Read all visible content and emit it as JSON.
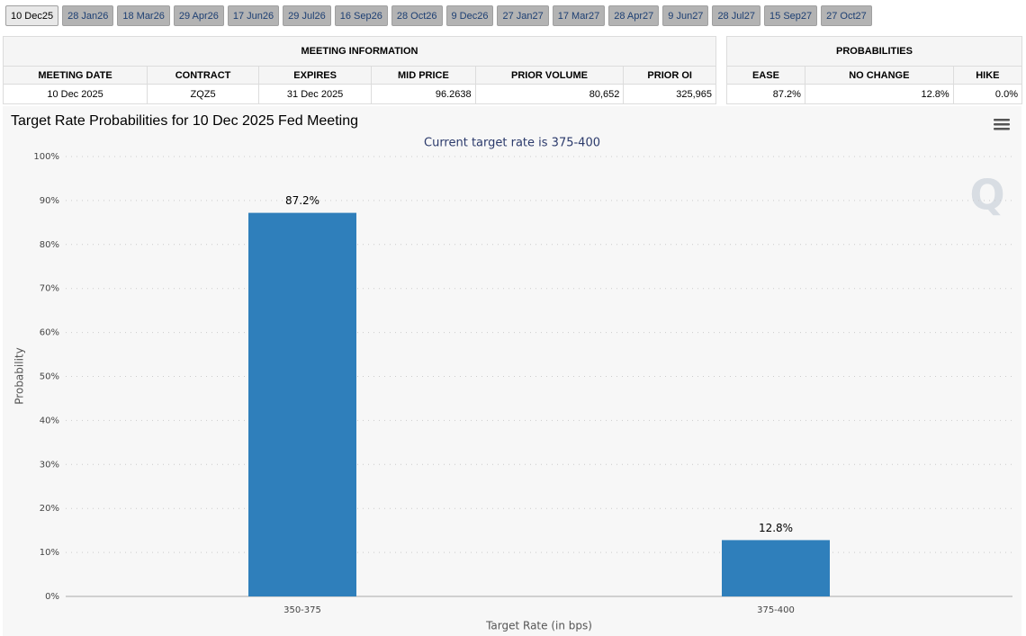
{
  "tabs": [
    "10 Dec25",
    "28 Jan26",
    "18 Mar26",
    "29 Apr26",
    "17 Jun26",
    "29 Jul26",
    "16 Sep26",
    "28 Oct26",
    "9 Dec26",
    "27 Jan27",
    "17 Mar27",
    "28 Apr27",
    "9 Jun27",
    "28 Jul27",
    "15 Sep27",
    "27 Oct27"
  ],
  "meeting_information": {
    "title": "MEETING INFORMATION",
    "headers": [
      "MEETING DATE",
      "CONTRACT",
      "EXPIRES",
      "MID PRICE",
      "PRIOR VOLUME",
      "PRIOR OI"
    ],
    "row": [
      "10 Dec 2025",
      "ZQZ5",
      "31 Dec 2025",
      "96.2638",
      "80,652",
      "325,965"
    ]
  },
  "probabilities": {
    "title": "PROBABILITIES",
    "headers": [
      "EASE",
      "NO CHANGE",
      "HIKE"
    ],
    "row": [
      "87.2%",
      "12.8%",
      "0.0%"
    ]
  },
  "chart_data": {
    "type": "bar",
    "title": "Target Rate Probabilities for 10 Dec 2025 Fed Meeting",
    "subtitle": "Current target rate is 375-400",
    "x_label": "Target Rate (in bps)",
    "y_label": "Probability",
    "categories": [
      "350-375",
      "375-400"
    ],
    "values": [
      87.2,
      12.8
    ],
    "value_labels": [
      "87.2%",
      "12.8%"
    ],
    "color": "#2f7fbb",
    "grid": true,
    "ylim": [
      0,
      100
    ],
    "yticks": [
      {
        "value": 0,
        "label": "0%"
      },
      {
        "value": 10,
        "label": "10%"
      },
      {
        "value": 20,
        "label": "20%"
      },
      {
        "value": 30,
        "label": "30%"
      },
      {
        "value": 40,
        "label": "40%"
      },
      {
        "value": 50,
        "label": "50%"
      },
      {
        "value": 60,
        "label": "60%"
      },
      {
        "value": 70,
        "label": "70%"
      },
      {
        "value": 80,
        "label": "80%"
      },
      {
        "value": 90,
        "label": "90%"
      },
      {
        "value": 100,
        "label": "100%"
      }
    ]
  }
}
